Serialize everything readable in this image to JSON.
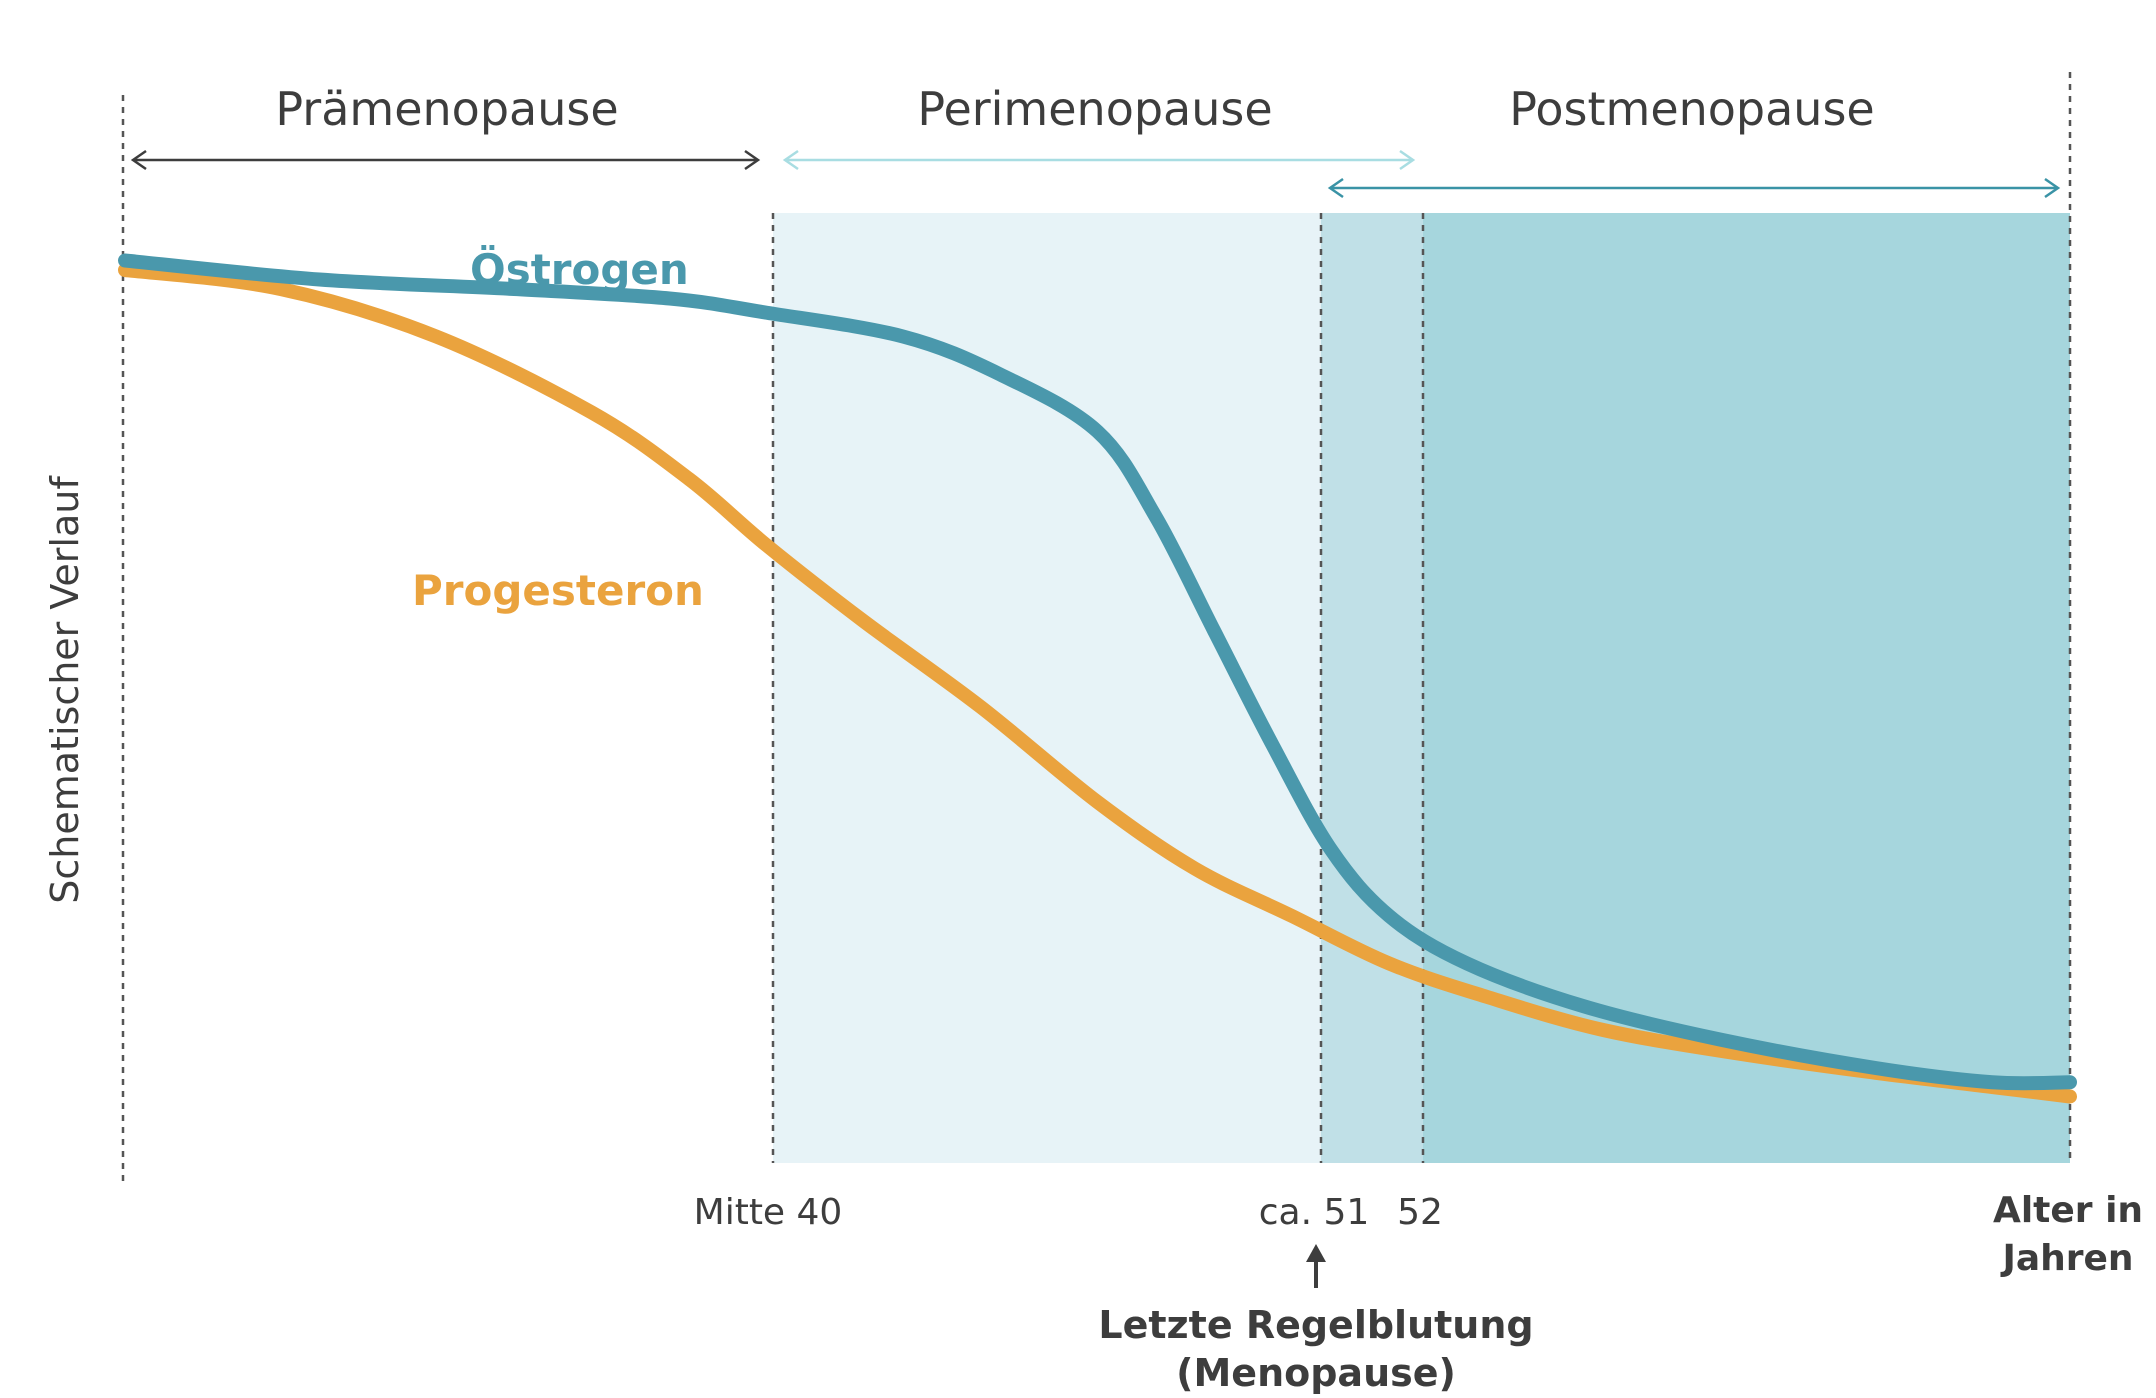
{
  "chart_data": {
    "type": "line",
    "title": "",
    "ylabel": "Schematischer Verlauf",
    "xlabel_lines": [
      "Alter in",
      "Jahren"
    ],
    "phases": [
      {
        "id": "praemenopause",
        "label": "Prämenopause",
        "arrow_color": "#3d3d3d"
      },
      {
        "id": "perimenopause",
        "label": "Perimenopause",
        "arrow_color": "#a8dde2"
      },
      {
        "id": "postmenopause",
        "label": "Postmenopause",
        "arrow_color": "#3a93a6"
      }
    ],
    "ticks": [
      {
        "id": "mitte40",
        "label": "Mitte 40"
      },
      {
        "id": "ca51",
        "label": "ca. 51"
      },
      {
        "id": "y52",
        "label": "52"
      }
    ],
    "annotation": {
      "lines": [
        "Letzte Regelblutung",
        "(Menopause)"
      ]
    },
    "series": [
      {
        "name": "Östrogen",
        "color": "#4a98ac",
        "points": [
          [
            0,
            0.95
          ],
          [
            0.1,
            0.93
          ],
          [
            0.2,
            0.92
          ],
          [
            0.28,
            0.91
          ],
          [
            0.33,
            0.895
          ],
          [
            0.4,
            0.87
          ],
          [
            0.45,
            0.83
          ],
          [
            0.5,
            0.77
          ],
          [
            0.53,
            0.68
          ],
          [
            0.56,
            0.56
          ],
          [
            0.59,
            0.44
          ],
          [
            0.62,
            0.33
          ],
          [
            0.65,
            0.26
          ],
          [
            0.69,
            0.21
          ],
          [
            0.75,
            0.165
          ],
          [
            0.82,
            0.13
          ],
          [
            0.9,
            0.1
          ],
          [
            0.96,
            0.085
          ],
          [
            1.0,
            0.085
          ]
        ]
      },
      {
        "name": "Progesteron",
        "color": "#eaa33e",
        "points": [
          [
            0,
            0.94
          ],
          [
            0.08,
            0.92
          ],
          [
            0.16,
            0.87
          ],
          [
            0.24,
            0.79
          ],
          [
            0.29,
            0.72
          ],
          [
            0.33,
            0.65
          ],
          [
            0.38,
            0.57
          ],
          [
            0.44,
            0.48
          ],
          [
            0.5,
            0.38
          ],
          [
            0.55,
            0.31
          ],
          [
            0.6,
            0.26
          ],
          [
            0.65,
            0.21
          ],
          [
            0.7,
            0.175
          ],
          [
            0.76,
            0.14
          ],
          [
            0.83,
            0.115
          ],
          [
            0.9,
            0.095
          ],
          [
            0.96,
            0.08
          ],
          [
            1.0,
            0.07
          ]
        ]
      }
    ],
    "colors": {
      "peri_band": "#e7f3f7",
      "menopause_band": "#c0e0e7",
      "post_band": "#a6d6dd",
      "text": "#3d3d3d",
      "dashed": "#555555"
    }
  }
}
